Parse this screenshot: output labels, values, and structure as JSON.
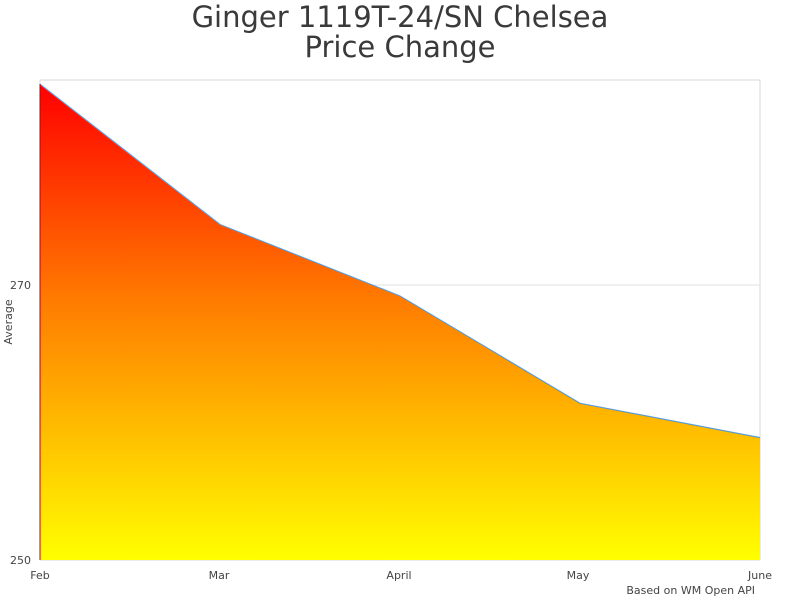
{
  "chart_data": {
    "type": "area",
    "title": "Ginger 1119T-24/SN Chelsea",
    "subtitle": "Price Change",
    "categories": [
      "Feb",
      "Mar",
      "April",
      "May",
      "June"
    ],
    "series": [
      {
        "name": "Average",
        "values": [
          284.6,
          274.4,
          269.2,
          261.4,
          258.9
        ]
      }
    ],
    "xlabel": "",
    "ylabel": "Average",
    "ylim": [
      250,
      285
    ],
    "yticks": [
      250,
      270
    ],
    "grid": true,
    "legend": "none",
    "fill_gradient": {
      "top": "#ff0000",
      "bottom": "#ffff00"
    },
    "line_color": "#5b9bd5"
  },
  "title": {
    "line1": "Ginger 1119T-24/SN Chelsea",
    "line2": "Price Change"
  },
  "axis": {
    "ylabel": "Average",
    "yticks": [
      "250",
      "270"
    ],
    "xticks": [
      "Feb",
      "Mar",
      "April",
      "May",
      "June"
    ]
  },
  "credit": "Based on WM Open API"
}
